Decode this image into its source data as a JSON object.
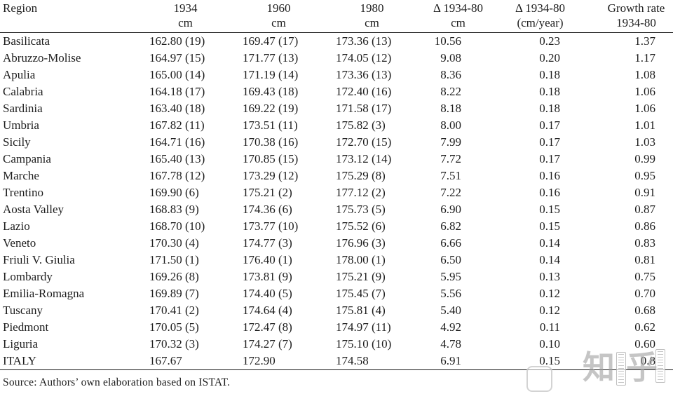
{
  "table": {
    "columns": [
      {
        "label": "Region",
        "sublabel": ""
      },
      {
        "label": "1934",
        "sublabel": "cm"
      },
      {
        "label": "1960",
        "sublabel": "cm"
      },
      {
        "label": "1980",
        "sublabel": "cm"
      },
      {
        "label": "Δ 1934-80",
        "sublabel": "cm"
      },
      {
        "label": "Δ 1934-80",
        "sublabel": "(cm/year)"
      },
      {
        "label": "Growth rate",
        "sublabel": "1934-80"
      }
    ],
    "rows": [
      [
        "Basilicata",
        "162.80 (19)",
        "169.47 (17)",
        "173.36 (13)",
        "10.56",
        "0.23",
        "1.37"
      ],
      [
        "Abruzzo-Molise",
        "164.97 (15)",
        "171.77 (13)",
        "174.05 (12)",
        "9.08",
        "0.20",
        "1.17"
      ],
      [
        "Apulia",
        "165.00 (14)",
        "171.19 (14)",
        "173.36 (13)",
        "8.36",
        "0.18",
        "1.08"
      ],
      [
        "Calabria",
        "164.18 (17)",
        "169.43 (18)",
        "172.40 (16)",
        "8.22",
        "0.18",
        "1.06"
      ],
      [
        "Sardinia",
        "163.40 (18)",
        "169.22 (19)",
        "171.58 (17)",
        "8.18",
        "0.18",
        "1.06"
      ],
      [
        "Umbria",
        "167.82 (11)",
        "173.51 (11)",
        "175.82 (3)",
        "8.00",
        "0.17",
        "1.01"
      ],
      [
        "Sicily",
        "164.71 (16)",
        "170.38 (16)",
        "172.70 (15)",
        "7.99",
        "0.17",
        "1.03"
      ],
      [
        "Campania",
        "165.40 (13)",
        "170.85 (15)",
        "173.12 (14)",
        "7.72",
        "0.17",
        "0.99"
      ],
      [
        "Marche",
        "167.78 (12)",
        "173.29 (12)",
        "175.29 (8)",
        "7.51",
        "0.16",
        "0.95"
      ],
      [
        "Trentino",
        "169.90 (6)",
        "175.21 (2)",
        "177.12 (2)",
        "7.22",
        "0.16",
        "0.91"
      ],
      [
        "Aosta Valley",
        "168.83 (9)",
        "174.36 (6)",
        "175.73 (5)",
        "6.90",
        "0.15",
        "0.87"
      ],
      [
        "Lazio",
        "168.70 (10)",
        "173.77 (10)",
        "175.52 (6)",
        "6.82",
        "0.15",
        "0.86"
      ],
      [
        "Veneto",
        "170.30 (4)",
        "174.77 (3)",
        "176.96 (3)",
        "6.66",
        "0.14",
        "0.83"
      ],
      [
        "Friuli V. Giulia",
        "171.50 (1)",
        "176.40 (1)",
        "178.00 (1)",
        "6.50",
        "0.14",
        "0.81"
      ],
      [
        "Lombardy",
        "169.26 (8)",
        "173.81 (9)",
        "175.21 (9)",
        "5.95",
        "0.13",
        "0.75"
      ],
      [
        "Emilia-Romagna",
        "169.89 (7)",
        "174.40 (5)",
        "175.45 (7)",
        "5.56",
        "0.12",
        "0.70"
      ],
      [
        "Tuscany",
        "170.41 (2)",
        "174.64 (4)",
        "175.81 (4)",
        "5.40",
        "0.12",
        "0.68"
      ],
      [
        "Piedmont",
        "170.05 (5)",
        "172.47 (8)",
        "174.97 (11)",
        "4.92",
        "0.11",
        "0.62"
      ],
      [
        "Liguria",
        "170.32 (3)",
        "174.27 (7)",
        "175.10 (10)",
        "4.78",
        "0.10",
        "0.60"
      ],
      [
        "ITALY",
        "167.67",
        "172.90",
        "174.58",
        "6.91",
        "0.15",
        "0.8"
      ]
    ]
  },
  "source_note": "Source: Authors’ own elaboration based on ISTAT.",
  "watermark": {
    "char_1": "知",
    "char_2": "乎"
  },
  "colors": {
    "text": "#1d1d1d",
    "rule": "#1a1a1a",
    "background": "#ffffff",
    "watermark": "#9e9e9e"
  }
}
